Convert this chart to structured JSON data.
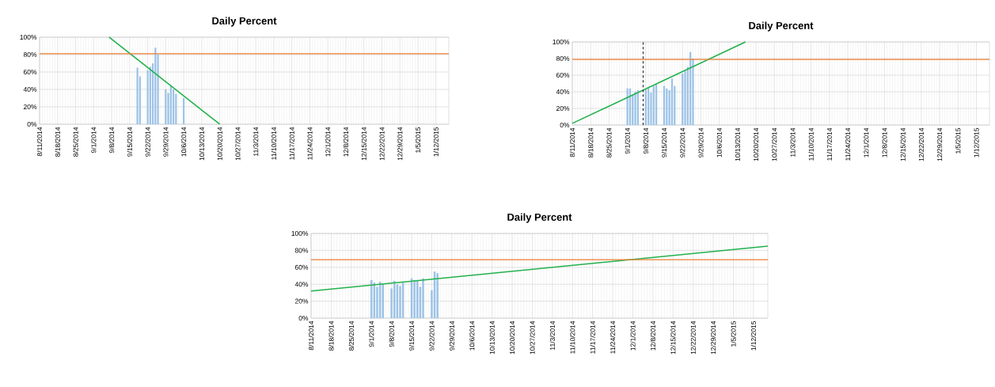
{
  "chart_data": [
    {
      "type": "bar",
      "title": "Daily Percent",
      "grid": true,
      "xlim": [
        "2014-08-11",
        "2015-01-17"
      ],
      "xticks": [
        {
          "value": "2014-08-11",
          "label": "8/11/2014"
        },
        {
          "value": "2014-08-18",
          "label": "8/18/2014"
        },
        {
          "value": "2014-08-25",
          "label": "8/25/2014"
        },
        {
          "value": "2014-09-01",
          "label": "9/1/2014"
        },
        {
          "value": "2014-09-08",
          "label": "9/8/2014"
        },
        {
          "value": "2014-09-15",
          "label": "9/15/2014"
        },
        {
          "value": "2014-09-22",
          "label": "9/22/2014"
        },
        {
          "value": "2014-09-29",
          "label": "9/29/2014"
        },
        {
          "value": "2014-10-06",
          "label": "10/6/2014"
        },
        {
          "value": "2014-10-13",
          "label": "10/13/2014"
        },
        {
          "value": "2014-10-20",
          "label": "10/20/2014"
        },
        {
          "value": "2014-10-27",
          "label": "10/27/2014"
        },
        {
          "value": "2014-11-03",
          "label": "11/3/2014"
        },
        {
          "value": "2014-11-10",
          "label": "11/10/2014"
        },
        {
          "value": "2014-11-17",
          "label": "11/17/2014"
        },
        {
          "value": "2014-11-24",
          "label": "11/24/2014"
        },
        {
          "value": "2014-12-01",
          "label": "12/1/2014"
        },
        {
          "value": "2014-12-08",
          "label": "12/8/2014"
        },
        {
          "value": "2014-12-15",
          "label": "12/15/2014"
        },
        {
          "value": "2014-12-22",
          "label": "12/22/2014"
        },
        {
          "value": "2014-12-29",
          "label": "12/29/2014"
        },
        {
          "value": "2015-01-05",
          "label": "1/5/2015"
        },
        {
          "value": "2015-01-12",
          "label": "1/12/2015"
        }
      ],
      "ylim": [
        0,
        100
      ],
      "yticks": [
        {
          "value": 0,
          "label": "0%"
        },
        {
          "value": 20,
          "label": "20%"
        },
        {
          "value": 40,
          "label": "40%"
        },
        {
          "value": 60,
          "label": "60%"
        },
        {
          "value": 80,
          "label": "80%"
        },
        {
          "value": 100,
          "label": "100%"
        }
      ],
      "ref_lines": [
        {
          "axis": "y",
          "value": 81,
          "color": "#ed7d31"
        }
      ],
      "series": [
        {
          "type": "bar",
          "color": "#9dc3e6",
          "x": [
            "2014-09-18",
            "2014-09-19",
            "2014-09-22",
            "2014-09-23",
            "2014-09-24",
            "2014-09-25",
            "2014-09-26",
            "2014-09-29",
            "2014-09-30",
            "2014-10-01",
            "2014-10-02",
            "2014-10-03",
            "2014-10-06"
          ],
          "values": [
            65,
            55,
            62,
            66,
            70,
            88,
            80,
            40,
            36,
            44,
            40,
            35,
            30
          ]
        },
        {
          "type": "line",
          "color": "#22b14c",
          "x": [
            "2014-09-07",
            "2014-10-20"
          ],
          "values": [
            100,
            0
          ]
        }
      ]
    },
    {
      "type": "bar",
      "title": "Daily Percent",
      "grid": true,
      "xlim": [
        "2014-08-11",
        "2015-01-17"
      ],
      "xticks": [
        {
          "value": "2014-08-11",
          "label": "8/11/2014"
        },
        {
          "value": "2014-08-18",
          "label": "8/18/2014"
        },
        {
          "value": "2014-08-25",
          "label": "8/25/2014"
        },
        {
          "value": "2014-09-01",
          "label": "9/1/2014"
        },
        {
          "value": "2014-09-08",
          "label": "9/8/2014"
        },
        {
          "value": "2014-09-15",
          "label": "9/15/2014"
        },
        {
          "value": "2014-09-22",
          "label": "9/22/2014"
        },
        {
          "value": "2014-09-29",
          "label": "9/29/2014"
        },
        {
          "value": "2014-10-06",
          "label": "10/6/2014"
        },
        {
          "value": "2014-10-13",
          "label": "10/13/2014"
        },
        {
          "value": "2014-10-20",
          "label": "10/20/2014"
        },
        {
          "value": "2014-10-27",
          "label": "10/27/2014"
        },
        {
          "value": "2014-11-03",
          "label": "11/3/2014"
        },
        {
          "value": "2014-11-10",
          "label": "11/10/2014"
        },
        {
          "value": "2014-11-17",
          "label": "11/17/2014"
        },
        {
          "value": "2014-11-24",
          "label": "11/24/2014"
        },
        {
          "value": "2014-12-01",
          "label": "12/1/2014"
        },
        {
          "value": "2014-12-08",
          "label": "12/8/2014"
        },
        {
          "value": "2014-12-15",
          "label": "12/15/2014"
        },
        {
          "value": "2014-12-22",
          "label": "12/22/2014"
        },
        {
          "value": "2014-12-29",
          "label": "12/29/2014"
        },
        {
          "value": "2015-01-05",
          "label": "1/5/2015"
        },
        {
          "value": "2015-01-12",
          "label": "1/12/2015"
        }
      ],
      "ylim": [
        0,
        100
      ],
      "yticks": [
        {
          "value": 0,
          "label": "0%"
        },
        {
          "value": 20,
          "label": "20%"
        },
        {
          "value": 40,
          "label": "40%"
        },
        {
          "value": 60,
          "label": "60%"
        },
        {
          "value": 80,
          "label": "80%"
        },
        {
          "value": 100,
          "label": "100%"
        }
      ],
      "ref_lines": [
        {
          "axis": "y",
          "value": 79,
          "color": "#ed7d31"
        },
        {
          "axis": "x",
          "value": "2014-09-07",
          "color": "#333333",
          "line_style": "dashed"
        }
      ],
      "series": [
        {
          "type": "bar",
          "color": "#9dc3e6",
          "x": [
            "2014-09-01",
            "2014-09-02",
            "2014-09-03",
            "2014-09-04",
            "2014-09-05",
            "2014-09-08",
            "2014-09-09",
            "2014-09-10",
            "2014-09-11",
            "2014-09-12",
            "2014-09-15",
            "2014-09-16",
            "2014-09-17",
            "2014-09-18",
            "2014-09-19",
            "2014-09-22",
            "2014-09-23",
            "2014-09-24",
            "2014-09-25",
            "2014-09-26"
          ],
          "values": [
            44,
            44,
            37,
            40,
            42,
            43,
            46,
            39,
            47,
            49,
            47,
            44,
            42,
            56,
            47,
            62,
            65,
            70,
            88,
            80
          ]
        },
        {
          "type": "line",
          "color": "#22b14c",
          "x": [
            "2014-08-11",
            "2014-10-16"
          ],
          "values": [
            2,
            100
          ]
        }
      ]
    },
    {
      "type": "bar",
      "title": "Daily Percent",
      "grid": true,
      "xlim": [
        "2014-08-11",
        "2015-01-17"
      ],
      "xticks": [
        {
          "value": "2014-08-11",
          "label": "8/11/2014"
        },
        {
          "value": "2014-08-18",
          "label": "8/18/2014"
        },
        {
          "value": "2014-08-25",
          "label": "8/25/2014"
        },
        {
          "value": "2014-09-01",
          "label": "9/1/2014"
        },
        {
          "value": "2014-09-08",
          "label": "9/8/2014"
        },
        {
          "value": "2014-09-15",
          "label": "9/15/2014"
        },
        {
          "value": "2014-09-22",
          "label": "9/22/2014"
        },
        {
          "value": "2014-09-29",
          "label": "9/29/2014"
        },
        {
          "value": "2014-10-06",
          "label": "10/6/2014"
        },
        {
          "value": "2014-10-13",
          "label": "10/13/2014"
        },
        {
          "value": "2014-10-20",
          "label": "10/20/2014"
        },
        {
          "value": "2014-10-27",
          "label": "10/27/2014"
        },
        {
          "value": "2014-11-03",
          "label": "11/3/2014"
        },
        {
          "value": "2014-11-10",
          "label": "11/10/2014"
        },
        {
          "value": "2014-11-17",
          "label": "11/17/2014"
        },
        {
          "value": "2014-11-24",
          "label": "11/24/2014"
        },
        {
          "value": "2014-12-01",
          "label": "12/1/2014"
        },
        {
          "value": "2014-12-08",
          "label": "12/8/2014"
        },
        {
          "value": "2014-12-15",
          "label": "12/15/2014"
        },
        {
          "value": "2014-12-22",
          "label": "12/22/2014"
        },
        {
          "value": "2014-12-29",
          "label": "12/29/2014"
        },
        {
          "value": "2015-01-05",
          "label": "1/5/2015"
        },
        {
          "value": "2015-01-12",
          "label": "1/12/2015"
        }
      ],
      "ylim": [
        0,
        100
      ],
      "yticks": [
        {
          "value": 0,
          "label": "0%"
        },
        {
          "value": 20,
          "label": "20%"
        },
        {
          "value": 40,
          "label": "40%"
        },
        {
          "value": 60,
          "label": "60%"
        },
        {
          "value": 80,
          "label": "80%"
        },
        {
          "value": 100,
          "label": "100%"
        }
      ],
      "ref_lines": [
        {
          "axis": "y",
          "value": 69,
          "color": "#ed7d31"
        }
      ],
      "series": [
        {
          "type": "bar",
          "color": "#9dc3e6",
          "x": [
            "2014-09-01",
            "2014-09-02",
            "2014-09-03",
            "2014-09-04",
            "2014-09-05",
            "2014-09-08",
            "2014-09-09",
            "2014-09-10",
            "2014-09-11",
            "2014-09-12",
            "2014-09-15",
            "2014-09-16",
            "2014-09-17",
            "2014-09-18",
            "2014-09-19",
            "2014-09-22",
            "2014-09-23",
            "2014-09-24"
          ],
          "values": [
            45,
            42,
            37,
            43,
            41,
            35,
            44,
            40,
            38,
            42,
            47,
            45,
            44,
            37,
            47,
            33,
            55,
            53
          ]
        },
        {
          "type": "line",
          "color": "#22b14c",
          "x": [
            "2014-08-11",
            "2015-01-17"
          ],
          "values": [
            32,
            85
          ]
        }
      ]
    }
  ]
}
